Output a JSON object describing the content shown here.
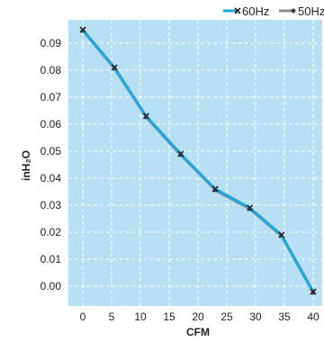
{
  "chart_data": {
    "type": "line",
    "xlabel": "CFM",
    "ylabel": "inH₂O",
    "xlim": [
      0,
      40
    ],
    "ylim": [
      0,
      0.09
    ],
    "x_ticks": [
      "0",
      "5",
      "10",
      "15",
      "20",
      "25",
      "30",
      "35",
      "40"
    ],
    "y_ticks": [
      "0.00",
      "0.01",
      "0.02",
      "0.03",
      "0.04",
      "0.05",
      "0.06",
      "0.07",
      "0.08",
      "0.09"
    ],
    "grid": true,
    "legend_position": "top-right",
    "series": [
      {
        "name": "60Hz",
        "color": "#1ea7e0",
        "marker": "x",
        "x": [
          0,
          5.5,
          11,
          17,
          23,
          29,
          34.5,
          40
        ],
        "y": [
          0.095,
          0.081,
          0.063,
          0.049,
          0.036,
          0.029,
          0.019,
          -0.002
        ]
      },
      {
        "name": "50Hz",
        "color": "#8a8a8a",
        "marker": "dot",
        "x": [
          0,
          5.5,
          11,
          17,
          23,
          29,
          34.5,
          40
        ],
        "y": [
          0.095,
          0.081,
          0.063,
          0.049,
          0.036,
          0.029,
          0.019,
          -0.002
        ]
      }
    ]
  }
}
